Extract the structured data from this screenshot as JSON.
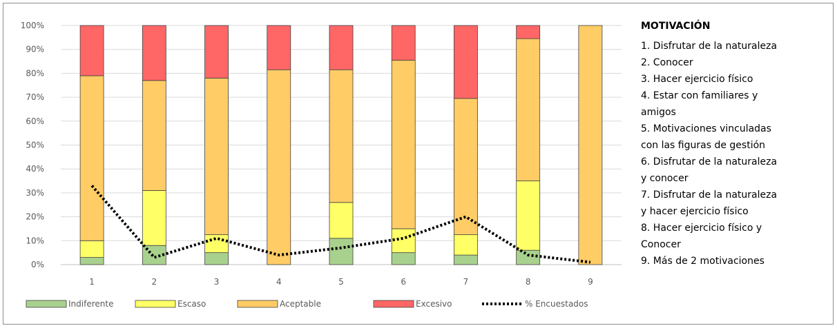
{
  "chart_data": {
    "type": "bar",
    "stacked": true,
    "categories": [
      "1",
      "2",
      "3",
      "4",
      "5",
      "6",
      "7",
      "8",
      "9"
    ],
    "ylim": [
      0,
      100
    ],
    "yticks": [
      "0%",
      "10%",
      "20%",
      "30%",
      "40%",
      "50%",
      "60%",
      "70%",
      "80%",
      "90%",
      "100%"
    ],
    "grid": true,
    "legend_position": "bottom",
    "series": [
      {
        "name": "Indiferente",
        "color": "#a9d18e",
        "values": [
          3,
          8,
          5,
          0,
          11,
          5,
          4,
          6,
          0
        ]
      },
      {
        "name": "Escaso",
        "color": "#ffff66",
        "values": [
          7,
          23,
          7.5,
          0,
          15,
          10,
          8.5,
          29,
          0
        ]
      },
      {
        "name": "Aceptable",
        "color": "#ffcc66",
        "values": [
          69,
          46,
          65.5,
          81.5,
          55.5,
          70.5,
          57,
          59.5,
          100
        ]
      },
      {
        "name": "Excesivo",
        "color": "#ff6666",
        "values": [
          21,
          23,
          22,
          18.5,
          18.5,
          14.5,
          30.5,
          5.5,
          0
        ]
      }
    ],
    "line_series": {
      "name": "% Encuestados",
      "color": "#000000",
      "style": "dotted",
      "values": [
        33,
        3,
        11,
        4,
        7,
        11,
        20,
        4,
        1
      ]
    }
  },
  "sidebar": {
    "title": "MOTIVACIÓN",
    "lines": [
      "1. Disfrutar de la naturaleza",
      "2. Conocer",
      "3. Hacer ejercicio físico",
      "4. Estar con familiares y",
      "amigos",
      "5. Motivaciones vinculadas",
      "con las figuras de gestión",
      "6. Disfrutar de la naturaleza",
      "y conocer",
      "7. Disfrutar de la naturaleza",
      "y hacer ejercicio físico",
      "8. Hacer ejercicio físico y",
      "Conocer",
      "9. Más de 2 motivaciones"
    ]
  }
}
